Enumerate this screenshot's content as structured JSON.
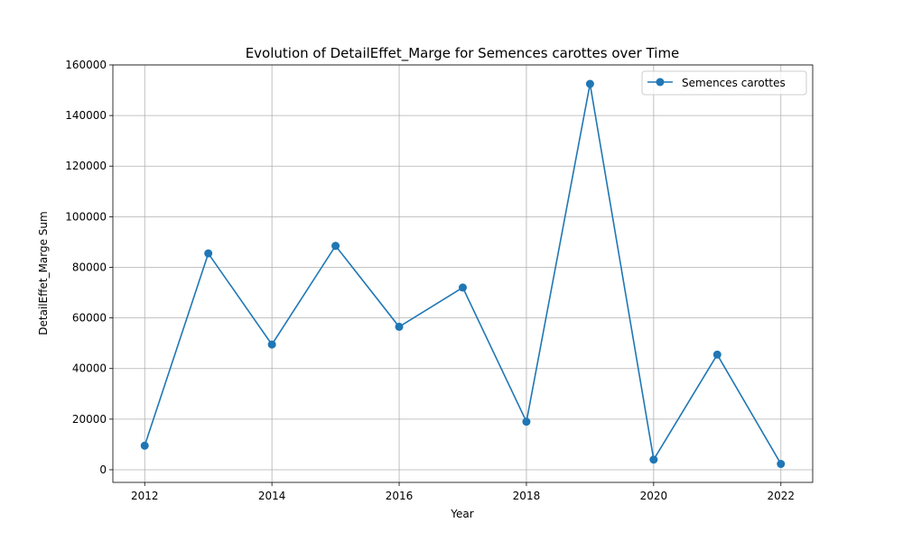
{
  "chart_data": {
    "type": "line",
    "title": "Evolution of DetailEffet_Marge for Semences carottes over Time",
    "xlabel": "Year",
    "ylabel": "DetailEffet_Marge Sum",
    "xlim": [
      2011.5,
      2022.5
    ],
    "ylim": [
      -5000,
      160000
    ],
    "xticks": [
      2012,
      2014,
      2016,
      2018,
      2020,
      2022
    ],
    "yticks": [
      0,
      20000,
      40000,
      60000,
      80000,
      100000,
      120000,
      140000,
      160000
    ],
    "grid": true,
    "legend_position": "top-right",
    "colors": {
      "series": "#1f77b4"
    },
    "x": [
      2012,
      2013,
      2014,
      2015,
      2016,
      2017,
      2018,
      2019,
      2020,
      2021,
      2022
    ],
    "series": [
      {
        "name": "Semences carottes",
        "values": [
          9500,
          85500,
          49500,
          88500,
          56500,
          72000,
          19000,
          152500,
          4000,
          45500,
          2300
        ]
      }
    ]
  }
}
